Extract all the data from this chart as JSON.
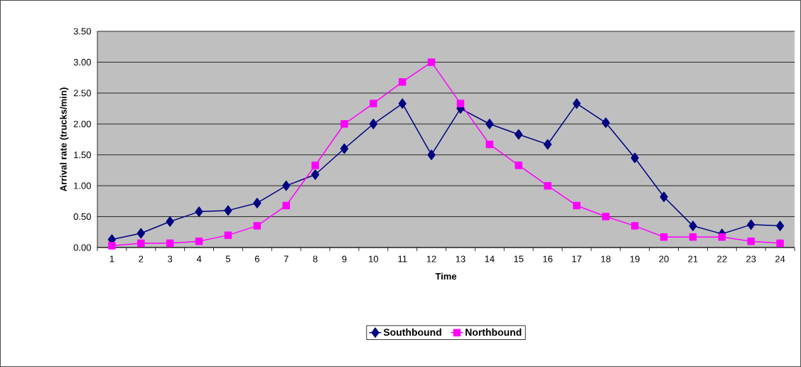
{
  "chart_data": {
    "type": "line",
    "xlabel": "Time",
    "ylabel": "Arrival rate (trucks/min)",
    "categories": [
      "1",
      "2",
      "3",
      "4",
      "5",
      "6",
      "7",
      "8",
      "9",
      "10",
      "11",
      "12",
      "13",
      "14",
      "15",
      "16",
      "17",
      "18",
      "19",
      "20",
      "21",
      "22",
      "23",
      "24"
    ],
    "series": [
      {
        "name": "Southbound",
        "color": "#000080",
        "marker": "diamond",
        "values": [
          0.13,
          0.23,
          0.42,
          0.58,
          0.6,
          0.72,
          1.0,
          1.18,
          1.6,
          2.0,
          2.33,
          1.5,
          2.25,
          2.0,
          1.83,
          1.67,
          2.33,
          2.02,
          1.45,
          0.82,
          0.35,
          0.22,
          0.37,
          0.35
        ]
      },
      {
        "name": "Northbound",
        "color": "#ff00ff",
        "marker": "square",
        "values": [
          0.03,
          0.07,
          0.07,
          0.1,
          0.2,
          0.35,
          0.68,
          1.33,
          2.0,
          2.33,
          2.68,
          3.0,
          2.33,
          1.67,
          1.33,
          1.0,
          0.68,
          0.5,
          0.35,
          0.17,
          0.17,
          0.17,
          0.1,
          0.07
        ]
      }
    ],
    "ylim": [
      0,
      3.5
    ],
    "yticks": [
      {
        "value": 0,
        "label": "0.00"
      },
      {
        "value": 0.5,
        "label": "0.50"
      },
      {
        "value": 1,
        "label": "1.00"
      },
      {
        "value": 1.5,
        "label": "1.50"
      },
      {
        "value": 2,
        "label": "2.00"
      },
      {
        "value": 2.5,
        "label": "2.50"
      },
      {
        "value": 3,
        "label": "3.00"
      },
      {
        "value": 3.5,
        "label": "3.50"
      }
    ],
    "grid": "y",
    "legend": "bottom",
    "line_style": "solid"
  }
}
